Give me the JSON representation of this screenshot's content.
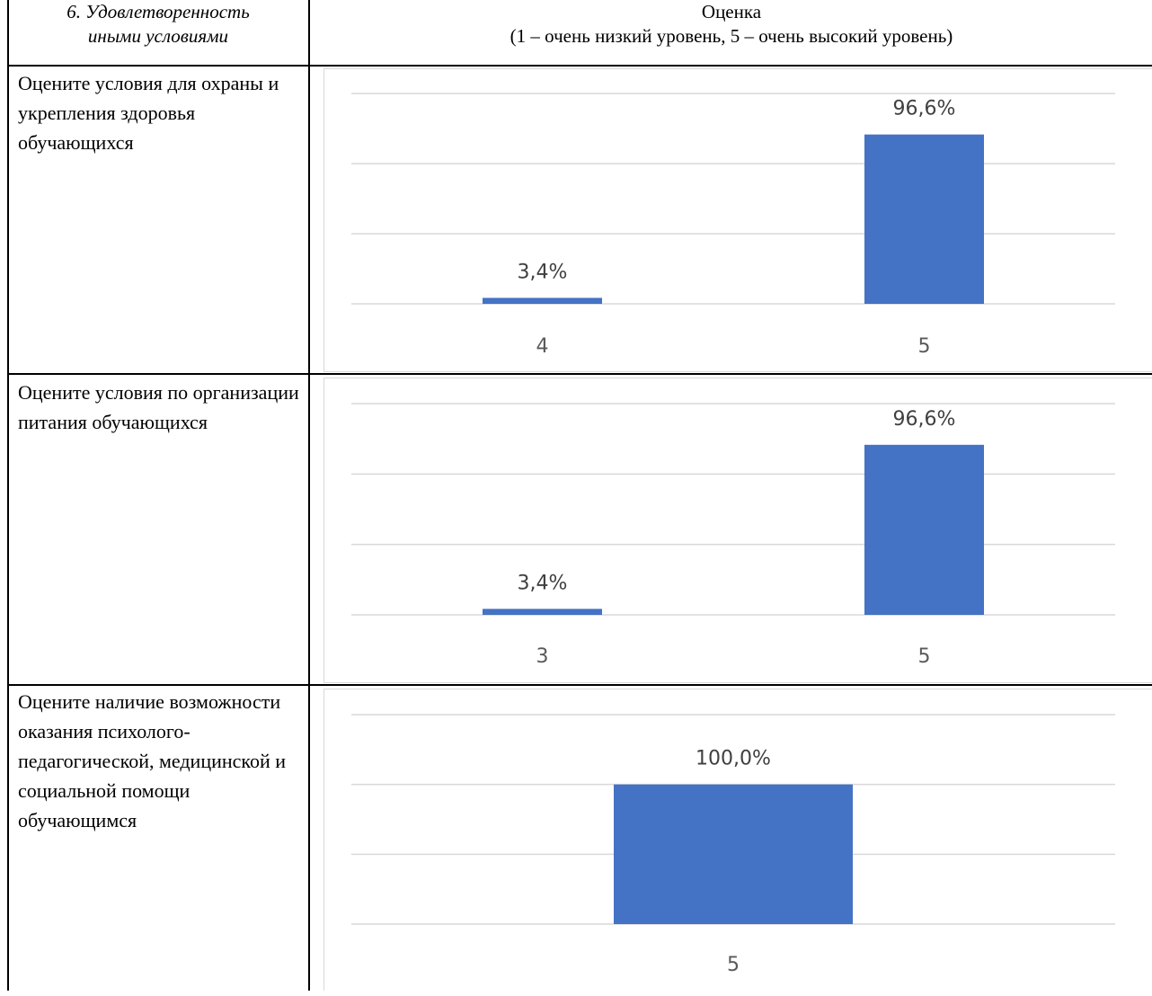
{
  "header": {
    "left_line1": "6. Удовлетворенность",
    "left_line2": "иными условиями",
    "right_line1": "Оценка",
    "right_line2": "(1 – очень низкий уровень, 5 – очень высокий уровень)"
  },
  "rows": [
    {
      "question": "Оцените условия для охраны и укрепления здоровья обучающихся"
    },
    {
      "question": "Оцените условия по организации питания обучающихся"
    },
    {
      "question": "Оцените наличие возможности оказания психолого-педагогической, медицинской и социальной помощи обучающимся"
    }
  ],
  "colors": {
    "bar": "#4472c4",
    "grid": "#d9d9d9",
    "axis_text": "#595959"
  },
  "chart_data": [
    {
      "type": "bar",
      "categories": [
        "4",
        "5"
      ],
      "values": [
        3.4,
        96.6
      ],
      "labels": [
        "3,4%",
        "96,6%"
      ],
      "ylim": [
        0,
        120
      ],
      "grid": true
    },
    {
      "type": "bar",
      "categories": [
        "3",
        "5"
      ],
      "values": [
        3.4,
        96.6
      ],
      "labels": [
        "3,4%",
        "96,6%"
      ],
      "ylim": [
        0,
        120
      ],
      "grid": true
    },
    {
      "type": "bar",
      "categories": [
        "5"
      ],
      "values": [
        100.0
      ],
      "labels": [
        "100,0%"
      ],
      "ylim": [
        0,
        150
      ],
      "grid": true
    }
  ]
}
